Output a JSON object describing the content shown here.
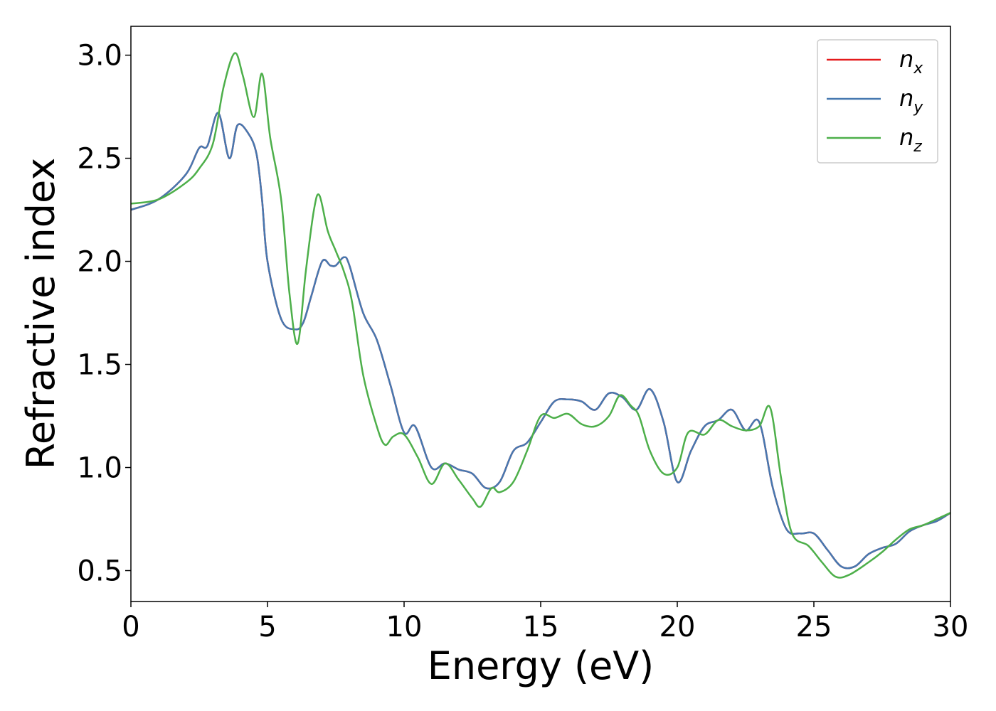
{
  "chart_data": {
    "type": "line",
    "title": "",
    "xlabel": "Energy (eV)",
    "ylabel": "Refractive index",
    "xlim": [
      0,
      30
    ],
    "ylim": [
      0.35,
      3.14
    ],
    "xticks": [
      0,
      5,
      10,
      15,
      20,
      25,
      30
    ],
    "xtick_labels": [
      "0",
      "5",
      "10",
      "15",
      "20",
      "25",
      "30"
    ],
    "yticks": [
      0.5,
      1.0,
      1.5,
      2.0,
      2.5,
      3.0
    ],
    "ytick_labels": [
      "0.5",
      "1.0",
      "1.5",
      "2.0",
      "2.5",
      "3.0"
    ],
    "grid": false,
    "legend_position": "top-right",
    "series": [
      {
        "name": "n_x",
        "legend_base": "n",
        "legend_sub": "x",
        "color": "#e41a1c",
        "x": [
          0,
          1,
          2,
          2.5,
          2.8,
          3.2,
          3.6,
          3.9,
          4.3,
          4.6,
          4.8,
          5.0,
          5.5,
          6.0,
          6.3,
          6.6,
          7.0,
          7.3,
          7.5,
          7.8,
          8.0,
          8.5,
          9.0,
          9.5,
          10.0,
          10.4,
          11.0,
          11.5,
          12.0,
          12.5,
          13.0,
          13.5,
          14.0,
          14.5,
          15.0,
          15.5,
          16.0,
          16.5,
          17.0,
          17.5,
          18.0,
          18.5,
          19.0,
          19.5,
          20.0,
          20.5,
          21.0,
          21.5,
          22.0,
          22.5,
          23.0,
          23.5,
          24.0,
          24.5,
          25.0,
          25.5,
          26.0,
          26.5,
          27.0,
          27.5,
          28.0,
          28.5,
          29.0,
          29.5,
          30.0
        ],
        "y": [
          2.25,
          2.3,
          2.42,
          2.55,
          2.56,
          2.72,
          2.5,
          2.66,
          2.62,
          2.52,
          2.3,
          2.0,
          1.72,
          1.67,
          1.7,
          1.83,
          2.0,
          1.98,
          1.98,
          2.02,
          1.98,
          1.75,
          1.62,
          1.4,
          1.17,
          1.2,
          1.0,
          1.02,
          0.99,
          0.97,
          0.9,
          0.93,
          1.08,
          1.12,
          1.22,
          1.32,
          1.33,
          1.32,
          1.28,
          1.36,
          1.34,
          1.28,
          1.38,
          1.22,
          0.93,
          1.08,
          1.2,
          1.23,
          1.28,
          1.18,
          1.22,
          0.9,
          0.7,
          0.68,
          0.68,
          0.6,
          0.52,
          0.52,
          0.58,
          0.61,
          0.63,
          0.69,
          0.72,
          0.74,
          0.78
        ]
      },
      {
        "name": "n_y",
        "legend_base": "n",
        "legend_sub": "y",
        "color": "#4678b0",
        "x": [
          0,
          1,
          2,
          2.5,
          2.8,
          3.2,
          3.6,
          3.9,
          4.3,
          4.6,
          4.8,
          5.0,
          5.5,
          6.0,
          6.3,
          6.6,
          7.0,
          7.3,
          7.5,
          7.8,
          8.0,
          8.5,
          9.0,
          9.5,
          10.0,
          10.4,
          11.0,
          11.5,
          12.0,
          12.5,
          13.0,
          13.5,
          14.0,
          14.5,
          15.0,
          15.5,
          16.0,
          16.5,
          17.0,
          17.5,
          18.0,
          18.5,
          19.0,
          19.5,
          20.0,
          20.5,
          21.0,
          21.5,
          22.0,
          22.5,
          23.0,
          23.5,
          24.0,
          24.5,
          25.0,
          25.5,
          26.0,
          26.5,
          27.0,
          27.5,
          28.0,
          28.5,
          29.0,
          29.5,
          30.0
        ],
        "y": [
          2.25,
          2.3,
          2.42,
          2.55,
          2.56,
          2.72,
          2.5,
          2.66,
          2.62,
          2.52,
          2.3,
          2.0,
          1.72,
          1.67,
          1.7,
          1.83,
          2.0,
          1.98,
          1.98,
          2.02,
          1.98,
          1.75,
          1.62,
          1.4,
          1.17,
          1.2,
          1.0,
          1.02,
          0.99,
          0.97,
          0.9,
          0.93,
          1.08,
          1.12,
          1.22,
          1.32,
          1.33,
          1.32,
          1.28,
          1.36,
          1.34,
          1.28,
          1.38,
          1.22,
          0.93,
          1.08,
          1.2,
          1.23,
          1.28,
          1.18,
          1.22,
          0.9,
          0.7,
          0.68,
          0.68,
          0.6,
          0.52,
          0.52,
          0.58,
          0.61,
          0.63,
          0.69,
          0.72,
          0.74,
          0.78
        ]
      },
      {
        "name": "n_z",
        "legend_base": "n",
        "legend_sub": "z",
        "color": "#4daf4a",
        "x": [
          0,
          1,
          2,
          2.5,
          3.0,
          3.4,
          3.8,
          4.1,
          4.5,
          4.8,
          5.1,
          5.5,
          5.8,
          6.1,
          6.4,
          6.7,
          6.9,
          7.2,
          7.5,
          7.8,
          8.1,
          8.5,
          9.0,
          9.3,
          9.6,
          10.0,
          10.5,
          11.0,
          11.5,
          12.0,
          12.5,
          12.8,
          13.2,
          13.5,
          14.0,
          14.5,
          15.0,
          15.5,
          16.0,
          16.5,
          17.0,
          17.5,
          17.9,
          18.3,
          18.6,
          19.0,
          19.5,
          20.0,
          20.4,
          21.0,
          21.5,
          22.0,
          22.5,
          23.0,
          23.4,
          23.8,
          24.2,
          24.8,
          25.3,
          25.8,
          26.3,
          27.0,
          27.5,
          28.0,
          28.5,
          29.0,
          29.5,
          30.0
        ],
        "y": [
          2.28,
          2.3,
          2.38,
          2.45,
          2.57,
          2.85,
          3.01,
          2.9,
          2.7,
          2.91,
          2.6,
          2.3,
          1.85,
          1.6,
          1.95,
          2.25,
          2.32,
          2.15,
          2.05,
          1.95,
          1.8,
          1.45,
          1.2,
          1.11,
          1.15,
          1.16,
          1.05,
          0.92,
          1.02,
          0.94,
          0.85,
          0.81,
          0.9,
          0.88,
          0.93,
          1.08,
          1.25,
          1.24,
          1.26,
          1.21,
          1.2,
          1.25,
          1.35,
          1.3,
          1.25,
          1.08,
          0.97,
          1.0,
          1.17,
          1.16,
          1.23,
          1.2,
          1.18,
          1.2,
          1.29,
          0.95,
          0.68,
          0.62,
          0.54,
          0.47,
          0.48,
          0.54,
          0.59,
          0.65,
          0.7,
          0.72,
          0.75,
          0.78
        ]
      }
    ]
  }
}
